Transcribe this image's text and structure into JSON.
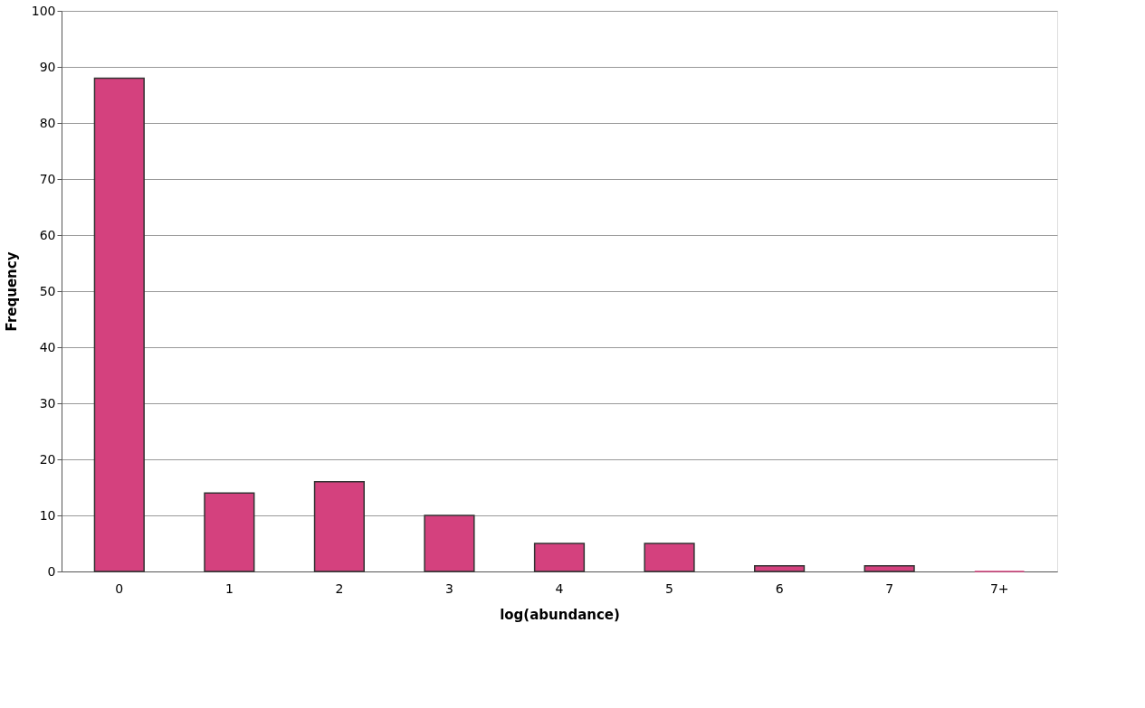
{
  "chart_data": {
    "type": "bar",
    "xlabel": "log(abundance)",
    "ylabel": "Frequency",
    "categories": [
      "0",
      "1",
      "2",
      "3",
      "4",
      "5",
      "6",
      "7",
      "7+"
    ],
    "values": [
      88,
      14,
      16,
      10,
      5,
      5,
      1,
      1,
      0
    ],
    "color": "#d4417e",
    "ylim": [
      0,
      100
    ],
    "yticks": [
      0,
      10,
      20,
      30,
      40,
      50,
      60,
      70,
      80,
      90,
      100
    ],
    "grid": "y"
  }
}
